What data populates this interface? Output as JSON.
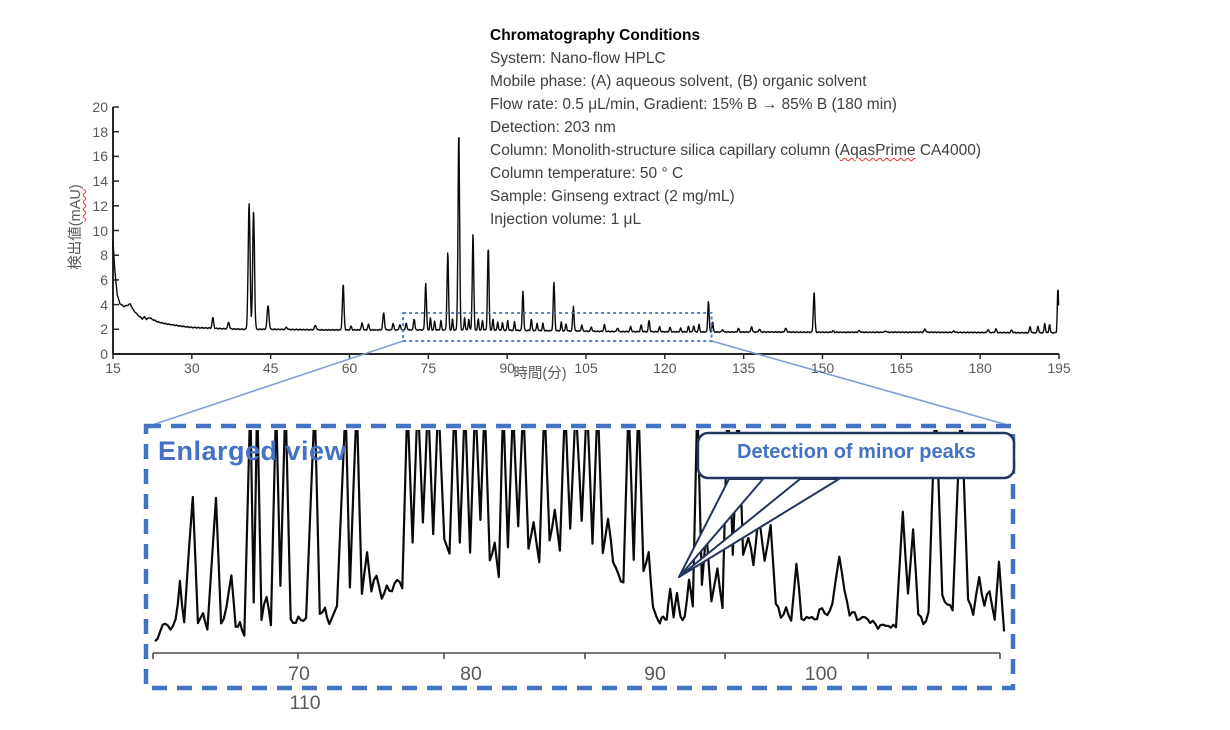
{
  "colors": {
    "accent": "#4472C4",
    "callout_border": "#24365E",
    "trace": "#0a0a0a",
    "axis": "#262626",
    "axis_text": "#595959",
    "connector": "#7f9fd4",
    "squiggle": "#ff2a2a"
  },
  "conditions": {
    "title": "Chromatography Conditions",
    "lines": [
      "System: Nano-flow HPLC",
      "Mobile phase: (A) aqueous solvent, (B) organic solvent",
      "Flow rate: 0.5 μL/min, Gradient: 15% B → 85% B (180 min)",
      "Detection: 203 nm",
      "Column temperature: 50 ° C",
      "Sample: Ginseng extract (2 mg/mL)",
      "Injection volume: 1 μL"
    ],
    "column_line": {
      "pre": "Column: Monolith-structure silica capillary column (",
      "word": "AqasPrime",
      "post": " CA4000)"
    }
  },
  "chart_data": [
    {
      "type": "line",
      "id": "main-chromatogram",
      "title": "",
      "xlabel": "時間(分)",
      "ylabel": "検出値(mAU)",
      "ylabel_pre": "検出値(",
      "ylabel_mark": "mAU",
      "ylabel_post": ")",
      "xlim": [
        15,
        195
      ],
      "ylim": [
        0,
        20
      ],
      "x_ticks": [
        15,
        30,
        45,
        60,
        75,
        90,
        105,
        120,
        135,
        150,
        165,
        180,
        195
      ],
      "y_ticks": [
        0,
        2,
        4,
        6,
        8,
        10,
        12,
        14,
        16,
        18,
        20
      ],
      "grid": false,
      "baseline": [
        [
          15,
          9.2
        ],
        [
          15.3,
          7.0
        ],
        [
          15.8,
          4.8
        ],
        [
          16.3,
          4.1
        ],
        [
          17,
          3.85
        ],
        [
          17.8,
          3.95
        ],
        [
          18.3,
          4.05
        ],
        [
          18.8,
          3.6
        ],
        [
          19.5,
          3.25
        ],
        [
          20,
          3.05
        ],
        [
          20.6,
          2.85
        ],
        [
          21,
          3.0
        ],
        [
          21.4,
          2.8
        ],
        [
          21.9,
          2.95
        ],
        [
          22.5,
          2.8
        ],
        [
          23.5,
          2.6
        ],
        [
          25,
          2.45
        ],
        [
          26.5,
          2.35
        ],
        [
          28,
          2.25
        ],
        [
          30,
          2.15
        ],
        [
          33,
          2.1
        ],
        [
          36,
          2.05
        ],
        [
          40,
          2.0
        ],
        [
          45,
          2.0
        ],
        [
          50,
          1.98
        ],
        [
          55,
          1.95
        ],
        [
          60,
          1.95
        ],
        [
          70,
          1.95
        ],
        [
          80,
          1.95
        ],
        [
          90,
          1.92
        ],
        [
          95,
          1.9
        ],
        [
          100,
          1.88
        ],
        [
          105,
          1.85
        ],
        [
          110,
          1.82
        ],
        [
          120,
          1.8
        ],
        [
          130,
          1.78
        ],
        [
          140,
          1.78
        ],
        [
          150,
          1.76
        ],
        [
          160,
          1.76
        ],
        [
          170,
          1.76
        ],
        [
          180,
          1.74
        ],
        [
          190,
          1.72
        ],
        [
          195,
          1.72
        ]
      ],
      "peaks": [
        [
          34,
          0.85,
          0.15
        ],
        [
          37,
          0.55,
          0.15
        ],
        [
          40.9,
          10.2,
          0.18
        ],
        [
          41.75,
          9.6,
          0.17
        ],
        [
          44.5,
          1.9,
          0.18
        ],
        [
          48,
          0.18,
          0.15
        ],
        [
          53.5,
          0.35,
          0.18
        ],
        [
          58.8,
          3.7,
          0.15
        ],
        [
          60.3,
          0.3,
          0.13
        ],
        [
          62.4,
          0.55,
          0.15
        ],
        [
          63.6,
          0.45,
          0.13
        ],
        [
          66.5,
          1.35,
          0.16
        ],
        [
          68.3,
          0.55,
          0.13
        ],
        [
          69.6,
          0.45,
          0.13
        ],
        [
          70.8,
          0.55,
          0.13
        ],
        [
          72.3,
          0.9,
          0.13
        ],
        [
          74.5,
          3.8,
          0.14
        ],
        [
          75.4,
          0.95,
          0.11
        ],
        [
          76.2,
          0.7,
          0.11
        ],
        [
          77.4,
          0.75,
          0.11
        ],
        [
          78.7,
          6.3,
          0.14
        ],
        [
          79.6,
          0.9,
          0.1
        ],
        [
          80.8,
          16.1,
          0.15
        ],
        [
          81.9,
          1.0,
          0.11
        ],
        [
          82.7,
          0.9,
          0.11
        ],
        [
          83.5,
          7.8,
          0.14
        ],
        [
          84.5,
          0.9,
          0.11
        ],
        [
          85.3,
          0.8,
          0.11
        ],
        [
          86.4,
          6.7,
          0.14
        ],
        [
          87.3,
          0.9,
          0.11
        ],
        [
          88.2,
          0.7,
          0.11
        ],
        [
          89.1,
          0.6,
          0.11
        ],
        [
          90.1,
          0.8,
          0.11
        ],
        [
          91.4,
          0.7,
          0.11
        ],
        [
          93,
          3.2,
          0.13
        ],
        [
          94.6,
          0.9,
          0.12
        ],
        [
          95.7,
          0.6,
          0.11
        ],
        [
          96.8,
          0.6,
          0.11
        ],
        [
          98.9,
          3.9,
          0.14
        ],
        [
          100.3,
          0.7,
          0.11
        ],
        [
          101.2,
          0.6,
          0.11
        ],
        [
          102.6,
          2.0,
          0.13
        ],
        [
          104.2,
          0.5,
          0.12
        ],
        [
          106,
          0.35,
          0.13
        ],
        [
          108.5,
          0.55,
          0.13
        ],
        [
          111,
          0.3,
          0.13
        ],
        [
          113.5,
          0.4,
          0.13
        ],
        [
          115.5,
          0.55,
          0.13
        ],
        [
          117,
          0.9,
          0.13
        ],
        [
          119,
          0.4,
          0.13
        ],
        [
          121,
          0.35,
          0.13
        ],
        [
          123,
          0.3,
          0.12
        ],
        [
          124.5,
          0.45,
          0.12
        ],
        [
          125.5,
          0.5,
          0.12
        ],
        [
          126.5,
          0.6,
          0.12
        ],
        [
          128.3,
          2.5,
          0.13
        ],
        [
          129.1,
          0.8,
          0.11
        ],
        [
          131,
          0.2,
          0.13
        ],
        [
          134,
          0.3,
          0.13
        ],
        [
          136.5,
          0.45,
          0.13
        ],
        [
          138,
          0.25,
          0.13
        ],
        [
          143,
          0.3,
          0.16
        ],
        [
          148.4,
          3.3,
          0.14
        ],
        [
          152,
          0.1,
          0.16
        ],
        [
          157,
          0.12,
          0.16
        ],
        [
          162,
          0.1,
          0.16
        ],
        [
          169.5,
          0.25,
          0.16
        ],
        [
          175,
          0.1,
          0.16
        ],
        [
          181.5,
          0.25,
          0.14
        ],
        [
          183,
          0.3,
          0.13
        ],
        [
          186,
          0.2,
          0.15
        ],
        [
          189.5,
          0.5,
          0.13
        ],
        [
          191,
          0.55,
          0.12
        ],
        [
          192.3,
          0.75,
          0.12
        ],
        [
          193.2,
          0.7,
          0.11
        ],
        [
          194.8,
          3.6,
          0.12
        ]
      ],
      "highlight_region": {
        "t0": 70.2,
        "t1": 128.9,
        "v0": 1.05,
        "v1": 3.32
      }
    },
    {
      "type": "line",
      "id": "enlarged-chromatogram",
      "title": "Enlarged view",
      "callout": "Detection of minor peaks",
      "xlim": [
        62,
        111.5
      ],
      "x_tick_labels": [
        "70",
        "80",
        "90",
        "100",
        "110"
      ],
      "grid": false,
      "points": [
        [
          62,
          0.04
        ],
        [
          62.3,
          0.07
        ],
        [
          62.6,
          0.12
        ],
        [
          62.9,
          0.08
        ],
        [
          63.2,
          0.14
        ],
        [
          63.45,
          0.3
        ],
        [
          63.7,
          0.1
        ],
        [
          64.2,
          0.72
        ],
        [
          64.5,
          0.1
        ],
        [
          64.8,
          0.18
        ],
        [
          65.05,
          0.1
        ],
        [
          65.55,
          0.7
        ],
        [
          65.85,
          0.12
        ],
        [
          66.15,
          0.18
        ],
        [
          66.45,
          0.35
        ],
        [
          66.7,
          0.1
        ],
        [
          66.95,
          0.12
        ],
        [
          67.2,
          0.07
        ],
        [
          67.55,
          1.15
        ],
        [
          67.75,
          0.2
        ],
        [
          67.95,
          1.15
        ],
        [
          68.2,
          0.12
        ],
        [
          68.5,
          0.25
        ],
        [
          68.75,
          0.1
        ],
        [
          69.05,
          1.15
        ],
        [
          69.3,
          0.3
        ],
        [
          69.6,
          1.15
        ],
        [
          69.9,
          0.15
        ],
        [
          70.2,
          0.1
        ],
        [
          70.5,
          0.15
        ],
        [
          70.8,
          0.12
        ],
        [
          71.3,
          1.15
        ],
        [
          71.6,
          0.15
        ],
        [
          71.9,
          0.2
        ],
        [
          72.15,
          0.12
        ],
        [
          72.6,
          0.18
        ],
        [
          73.1,
          1.15
        ],
        [
          73.35,
          0.3
        ],
        [
          73.75,
          1.15
        ],
        [
          74.05,
          0.25
        ],
        [
          74.35,
          0.45
        ],
        [
          74.6,
          0.25
        ],
        [
          74.9,
          0.35
        ],
        [
          75.2,
          0.22
        ],
        [
          75.5,
          0.3
        ],
        [
          75.8,
          0.26
        ],
        [
          76.1,
          0.32
        ],
        [
          76.4,
          0.28
        ],
        [
          76.7,
          1.15
        ],
        [
          77.0,
          0.5
        ],
        [
          77.3,
          1.15
        ],
        [
          77.6,
          0.6
        ],
        [
          77.9,
          1.15
        ],
        [
          78.2,
          0.55
        ],
        [
          78.5,
          1.15
        ],
        [
          78.85,
          0.5
        ],
        [
          79.15,
          0.45
        ],
        [
          79.45,
          1.15
        ],
        [
          79.75,
          0.5
        ],
        [
          80.05,
          1.15
        ],
        [
          80.35,
          0.45
        ],
        [
          80.65,
          1.15
        ],
        [
          80.95,
          0.6
        ],
        [
          81.2,
          1.15
        ],
        [
          81.5,
          0.4
        ],
        [
          81.78,
          0.5
        ],
        [
          82.02,
          0.35
        ],
        [
          82.28,
          1.15
        ],
        [
          82.55,
          0.45
        ],
        [
          82.85,
          1.15
        ],
        [
          83.15,
          0.55
        ],
        [
          83.45,
          1.15
        ],
        [
          83.75,
          0.45
        ],
        [
          84.05,
          0.6
        ],
        [
          84.38,
          0.4
        ],
        [
          84.68,
          1.15
        ],
        [
          84.98,
          0.5
        ],
        [
          85.28,
          0.65
        ],
        [
          85.58,
          0.45
        ],
        [
          85.88,
          1.15
        ],
        [
          86.18,
          0.55
        ],
        [
          86.5,
          1.15
        ],
        [
          86.85,
          0.6
        ],
        [
          87.15,
          1.15
        ],
        [
          87.48,
          0.5
        ],
        [
          87.78,
          1.15
        ],
        [
          88.08,
          0.45
        ],
        [
          88.38,
          0.6
        ],
        [
          88.68,
          0.4
        ],
        [
          88.98,
          0.35
        ],
        [
          89.28,
          0.3
        ],
        [
          89.58,
          1.15
        ],
        [
          89.88,
          0.4
        ],
        [
          90.15,
          1.15
        ],
        [
          90.45,
          0.35
        ],
        [
          90.75,
          0.46
        ],
        [
          91,
          0.2
        ],
        [
          91.2,
          0.14
        ],
        [
          91.4,
          0.12
        ],
        [
          91.6,
          0.16
        ],
        [
          91.8,
          0.13
        ],
        [
          92,
          0.28
        ],
        [
          92.2,
          0.16
        ],
        [
          92.4,
          0.26
        ],
        [
          92.6,
          0.15
        ],
        [
          92.85,
          0.13
        ],
        [
          93.1,
          0.3
        ],
        [
          93.32,
          0.18
        ],
        [
          93.58,
          1.15
        ],
        [
          93.85,
          0.3
        ],
        [
          94.1,
          0.55
        ],
        [
          94.4,
          0.22
        ],
        [
          94.75,
          0.36
        ],
        [
          95.05,
          0.2
        ],
        [
          95.35,
          1.15
        ],
        [
          95.65,
          0.45
        ],
        [
          95.95,
          1.15
        ],
        [
          96.25,
          0.45
        ],
        [
          96.55,
          0.5
        ],
        [
          96.85,
          0.4
        ],
        [
          97.15,
          0.62
        ],
        [
          97.5,
          0.4
        ],
        [
          97.85,
          0.58
        ],
        [
          98.15,
          0.2
        ],
        [
          98.45,
          0.15
        ],
        [
          98.75,
          0.18
        ],
        [
          99.05,
          0.14
        ],
        [
          99.35,
          0.38
        ],
        [
          99.65,
          0.15
        ],
        [
          99.95,
          0.13
        ],
        [
          100.25,
          0.16
        ],
        [
          100.55,
          0.12
        ],
        [
          100.85,
          0.2
        ],
        [
          101.15,
          0.14
        ],
        [
          101.45,
          0.22
        ],
        [
          101.85,
          0.42
        ],
        [
          102.15,
          0.28
        ],
        [
          102.45,
          0.14
        ],
        [
          102.75,
          0.18
        ],
        [
          103.05,
          0.12
        ],
        [
          103.35,
          0.16
        ],
        [
          103.65,
          0.1
        ],
        [
          103.95,
          0.13
        ],
        [
          104.25,
          0.09
        ],
        [
          104.55,
          0.12
        ],
        [
          104.85,
          0.08
        ],
        [
          105.15,
          0.11
        ],
        [
          105.55,
          0.64
        ],
        [
          105.85,
          0.25
        ],
        [
          106.15,
          0.56
        ],
        [
          106.45,
          0.15
        ],
        [
          106.75,
          0.12
        ],
        [
          107.05,
          0.16
        ],
        [
          107.45,
          1.15
        ],
        [
          107.85,
          0.25
        ],
        [
          108.15,
          0.2
        ],
        [
          108.45,
          0.18
        ],
        [
          108.95,
          1.15
        ],
        [
          109.35,
          0.22
        ],
        [
          109.65,
          0.16
        ],
        [
          110,
          0.35
        ],
        [
          110.3,
          0.18
        ],
        [
          110.6,
          0.28
        ],
        [
          110.9,
          0.12
        ],
        [
          111.15,
          0.4
        ],
        [
          111.45,
          0.08
        ]
      ]
    }
  ]
}
